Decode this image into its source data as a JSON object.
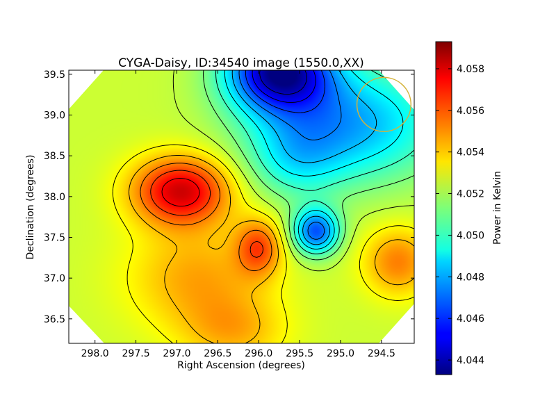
{
  "chart_data": {
    "type": "heatmap",
    "title": "CYGA-Daisy, ID:34540 image (1550.0,XX)",
    "xlabel": "Right Ascension (degrees)",
    "ylabel": "Declination (degrees)",
    "colorbar_label": "Power in Kelvin",
    "colormap": "jet",
    "xlim": [
      298.32,
      294.1
    ],
    "ylim": [
      36.2,
      39.55
    ],
    "x_ticks": [
      298.0,
      297.5,
      297.0,
      296.5,
      296.0,
      295.5,
      295.0,
      294.5
    ],
    "x_tick_labels": [
      "298.0",
      "297.5",
      "297.0",
      "296.5",
      "296.0",
      "295.5",
      "295.0",
      "294.5"
    ],
    "y_ticks": [
      36.5,
      37.0,
      37.5,
      38.0,
      38.5,
      39.0,
      39.5
    ],
    "y_tick_labels": [
      "36.5",
      "37.0",
      "37.5",
      "38.0",
      "38.5",
      "39.0",
      "39.5"
    ],
    "value_range": [
      4.0433,
      4.0593
    ],
    "colorbar_ticks": [
      4.044,
      4.046,
      4.048,
      4.05,
      4.052,
      4.054,
      4.056,
      4.058
    ],
    "colorbar_tick_labels": [
      "4.044",
      "4.046",
      "4.048",
      "4.050",
      "4.052",
      "4.054",
      "4.056",
      "4.058"
    ],
    "background_value": 4.0525,
    "features": [
      {
        "kind": "peak",
        "ra": 296.95,
        "dec": 38.07,
        "amplitude": 0.0055,
        "sigma_ra": 0.42,
        "sigma_dec": 0.3
      },
      {
        "kind": "peak",
        "ra": 296.0,
        "dec": 37.38,
        "amplitude": 0.0033,
        "sigma_ra": 0.2,
        "sigma_dec": 0.25
      },
      {
        "kind": "peak",
        "ra": 296.75,
        "dec": 37.0,
        "amplitude": 0.0022,
        "sigma_ra": 0.6,
        "sigma_dec": 0.45
      },
      {
        "kind": "peak",
        "ra": 296.3,
        "dec": 36.35,
        "amplitude": 0.0018,
        "sigma_ra": 0.45,
        "sigma_dec": 0.3
      },
      {
        "kind": "peak",
        "ra": 294.3,
        "dec": 37.2,
        "amplitude": 0.0028,
        "sigma_ra": 0.3,
        "sigma_dec": 0.3
      },
      {
        "kind": "valley",
        "ra": 295.75,
        "dec": 39.55,
        "amplitude": -0.0085,
        "sigma_ra": 0.45,
        "sigma_dec": 0.35
      },
      {
        "kind": "valley",
        "ra": 294.9,
        "dec": 38.9,
        "amplitude": -0.0045,
        "sigma_ra": 0.8,
        "sigma_dec": 0.5
      },
      {
        "kind": "valley",
        "ra": 295.3,
        "dec": 37.57,
        "amplitude": -0.0058,
        "sigma_ra": 0.2,
        "sigma_dec": 0.2
      },
      {
        "kind": "valley",
        "ra": 295.55,
        "dec": 38.45,
        "amplitude": -0.002,
        "sigma_ra": 0.4,
        "sigma_dec": 0.35
      }
    ],
    "beam_marker": {
      "ra": 294.47,
      "dec": 39.13,
      "radius_deg": 0.33,
      "color": "#d4b23a"
    },
    "grid": false
  }
}
